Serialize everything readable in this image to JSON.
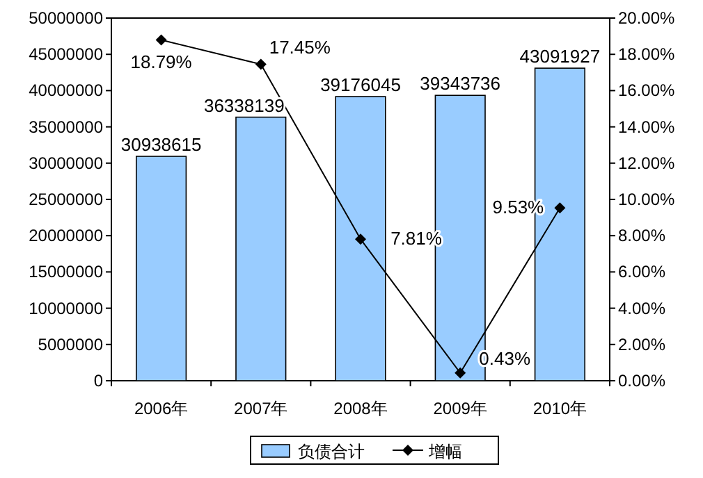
{
  "chart_data": {
    "type": "bar",
    "categories": [
      "2006年",
      "2007年",
      "2008年",
      "2009年",
      "2010年"
    ],
    "ylim": [
      0,
      50000000
    ],
    "yticks": [
      0,
      5000000,
      10000000,
      15000000,
      20000000,
      25000000,
      30000000,
      35000000,
      40000000,
      45000000,
      50000000
    ],
    "y2lim": [
      0,
      20
    ],
    "y2ticks": [
      {
        "value": 0,
        "label": "0.00%"
      },
      {
        "value": 2,
        "label": "2.00%"
      },
      {
        "value": 4,
        "label": "4.00%"
      },
      {
        "value": 6,
        "label": "6.00%"
      },
      {
        "value": 8,
        "label": "8.00%"
      },
      {
        "value": 10,
        "label": "10.00%"
      },
      {
        "value": 12,
        "label": "12.00%"
      },
      {
        "value": 14,
        "label": "14.00%"
      },
      {
        "value": 16,
        "label": "16.00%"
      },
      {
        "value": 18,
        "label": "18.00%"
      },
      {
        "value": 20,
        "label": "20.00%"
      }
    ],
    "series": [
      {
        "name": "负债合计",
        "color": "#99ccff",
        "values": [
          30938615,
          36338139,
          39176045,
          39343736,
          43091927
        ],
        "value_labels": [
          "30938615",
          "36338139",
          "39176045",
          "39343736",
          "43091927"
        ]
      },
      {
        "name": "增幅",
        "type": "line",
        "axis": "y2",
        "color": "#000000",
        "marker": "diamond",
        "values": [
          18.79,
          17.45,
          7.81,
          0.43,
          9.53
        ],
        "value_labels": [
          "18.79%",
          "17.45%",
          "7.81%",
          "0.43%",
          "9.53%"
        ]
      }
    ],
    "legend": "bottom",
    "grid": false
  }
}
